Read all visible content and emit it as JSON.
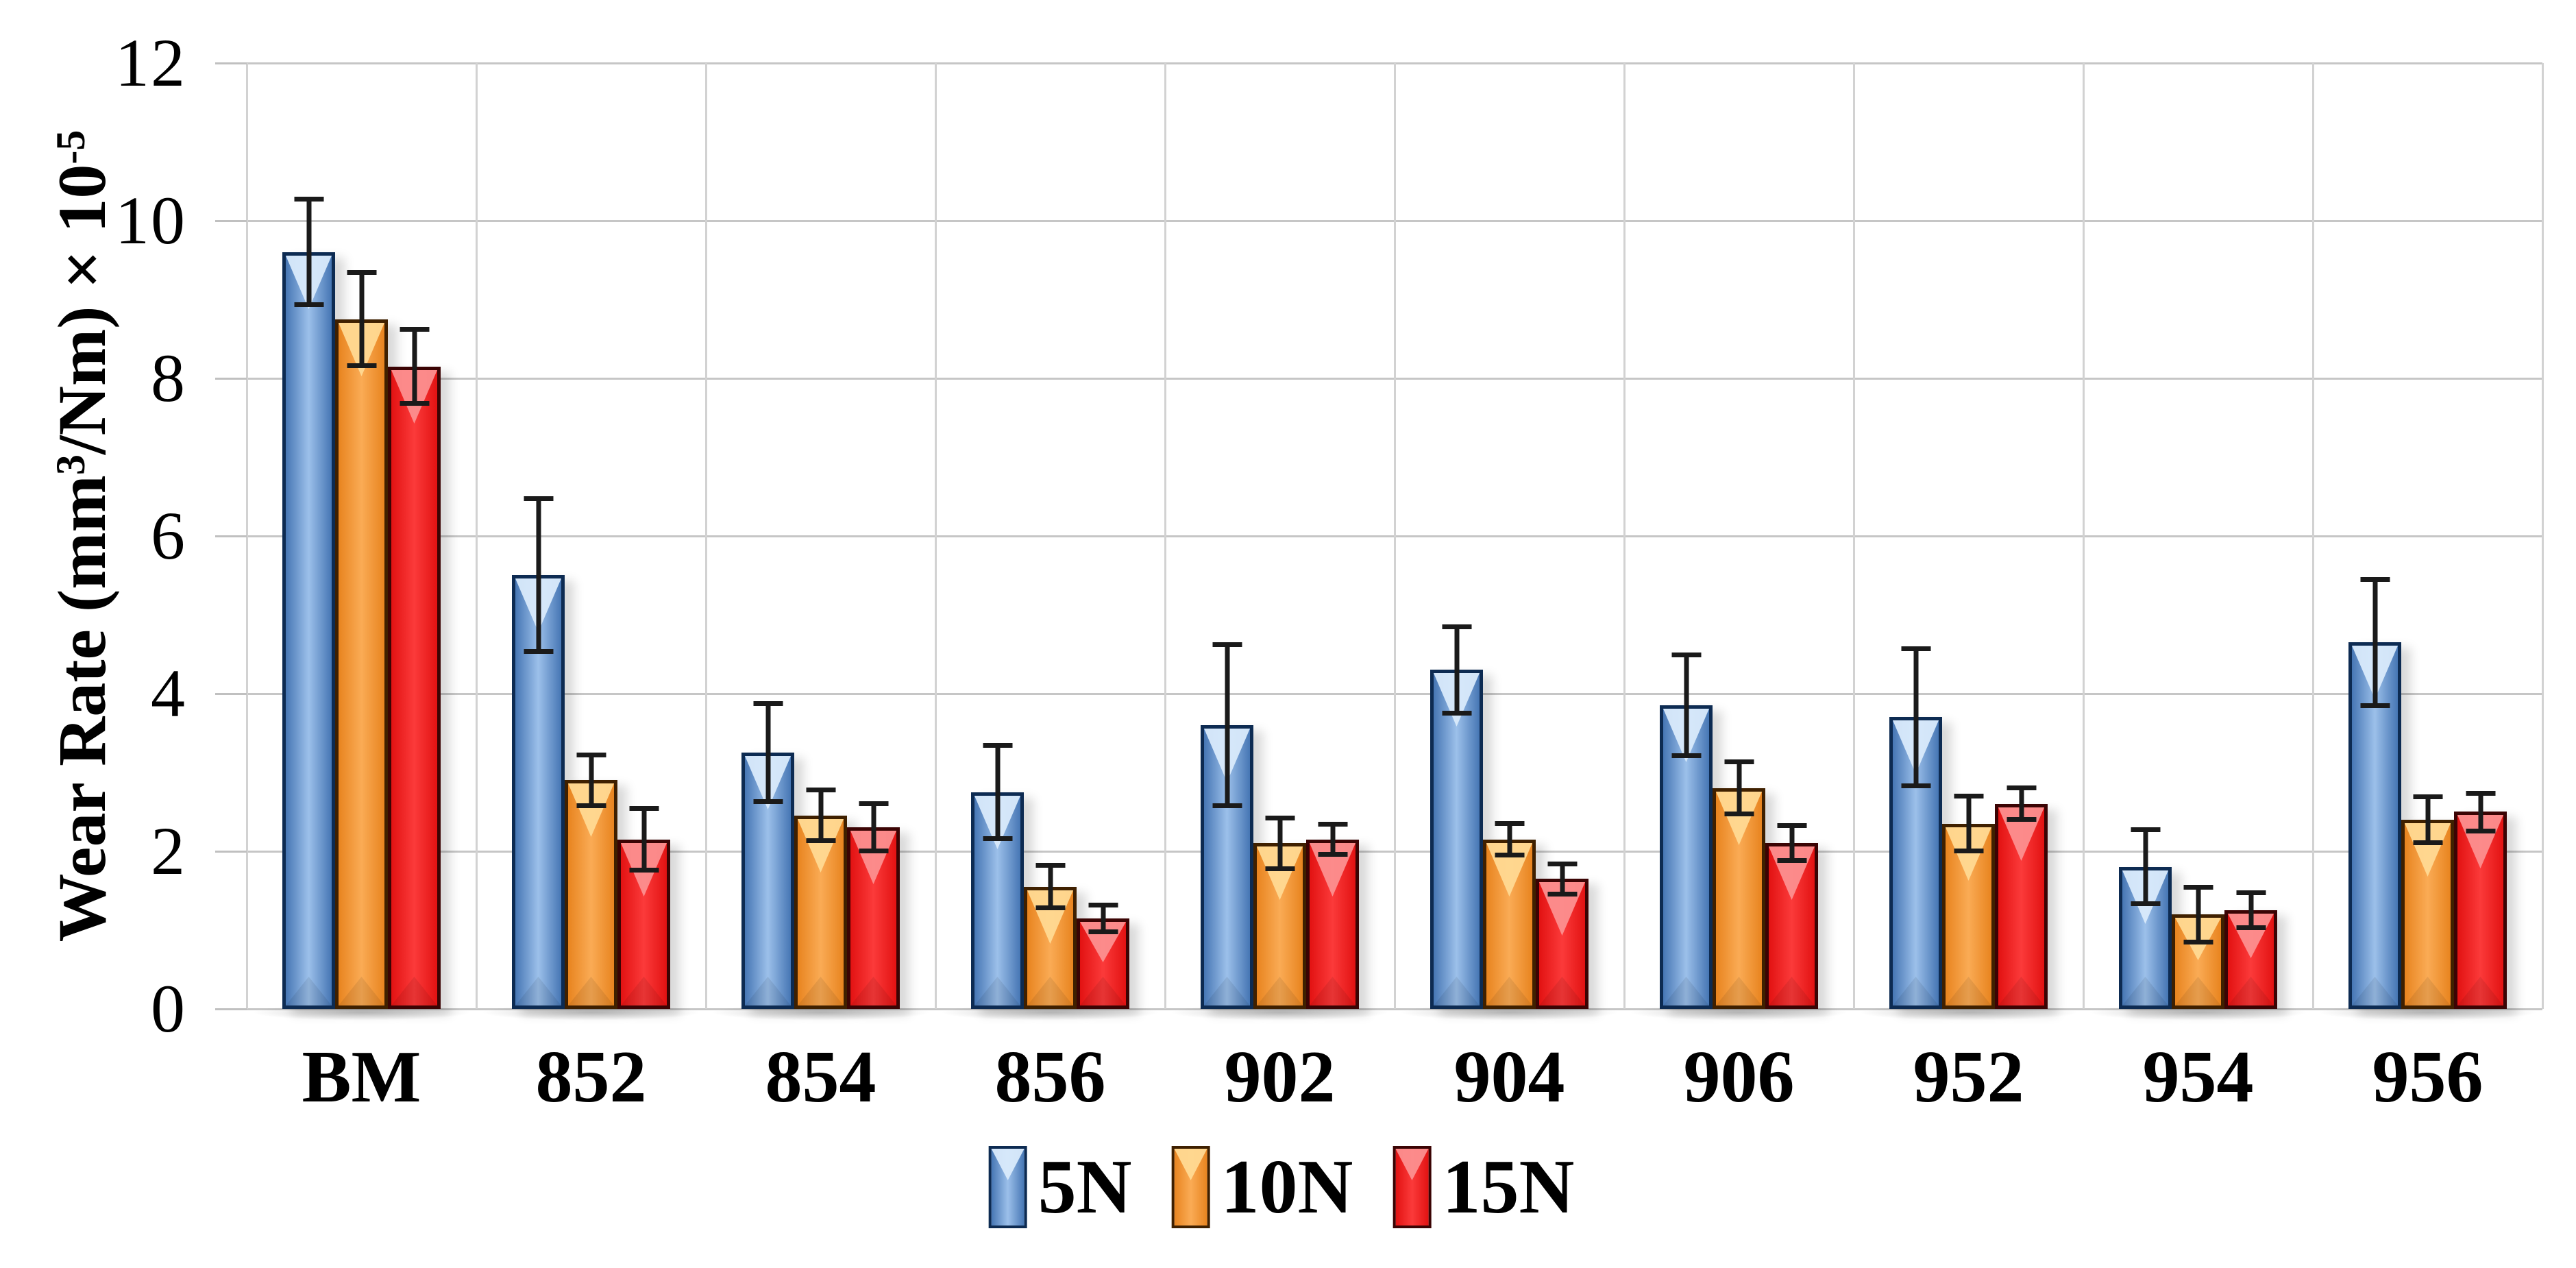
{
  "figure": {
    "background": "#ffffff",
    "gridline_color": "#c6c6c6",
    "separator_color": "#d2d2d2",
    "axis_tick_color": "#c0c0c0",
    "error_bar_color": "#1a1a1a"
  },
  "y_axis": {
    "title_parts": {
      "prefix": "Wear Rate (mm",
      "sup1": "3",
      "mid": "/Nm) × 10",
      "sup2": "-5"
    },
    "tick_labels": [
      "0",
      "2",
      "4",
      "6",
      "8",
      "10",
      "12"
    ]
  },
  "x_axis": {
    "labels": [
      "BM",
      "852",
      "854",
      "856",
      "902",
      "904",
      "906",
      "952",
      "954",
      "956"
    ]
  },
  "legend": {
    "labels": [
      "5N",
      "10N",
      "15N"
    ],
    "position": "bottom-center"
  },
  "chart_data": {
    "type": "bar",
    "title": "",
    "xlabel": "",
    "ylabel": "Wear Rate (mm³/Nm) × 10⁻⁵",
    "ylim": [
      0,
      12
    ],
    "ytick_step": 2,
    "grid": "horizontal gridlines + vertical category separators",
    "legend_position": "bottom-center",
    "error_bars": true,
    "categories": [
      "BM",
      "852",
      "854",
      "856",
      "902",
      "904",
      "906",
      "952",
      "954",
      "956"
    ],
    "series": [
      {
        "name": "5N",
        "values": [
          9.6,
          5.5,
          3.25,
          2.75,
          3.6,
          4.3,
          3.85,
          3.7,
          1.8,
          4.65
        ],
        "errors": [
          0.7,
          1.0,
          0.65,
          0.62,
          1.05,
          0.58,
          0.67,
          0.9,
          0.5,
          0.83
        ],
        "colors": {
          "edge": "#4676b4",
          "center": "#9cc0ea",
          "border": "#0d2b52",
          "gloss": "#d9eafb"
        }
      },
      {
        "name": "10N",
        "values": [
          8.75,
          2.9,
          2.45,
          1.55,
          2.1,
          2.15,
          2.8,
          2.35,
          1.2,
          2.4
        ],
        "errors": [
          0.62,
          0.35,
          0.35,
          0.3,
          0.35,
          0.23,
          0.36,
          0.38,
          0.38,
          0.32
        ],
        "colors": {
          "edge": "#e8841f",
          "center": "#faab55",
          "border": "#3f2000",
          "gloss": "#ffd992"
        }
      },
      {
        "name": "15N",
        "values": [
          8.15,
          2.15,
          2.3,
          1.15,
          2.15,
          1.65,
          2.1,
          2.6,
          1.25,
          2.5
        ],
        "errors": [
          0.5,
          0.42,
          0.33,
          0.2,
          0.22,
          0.22,
          0.25,
          0.23,
          0.25,
          0.27
        ],
        "colors": {
          "edge": "#e21212",
          "center": "#fb3a3a",
          "border": "#3b0404",
          "gloss": "#fc8f8f"
        }
      }
    ]
  }
}
